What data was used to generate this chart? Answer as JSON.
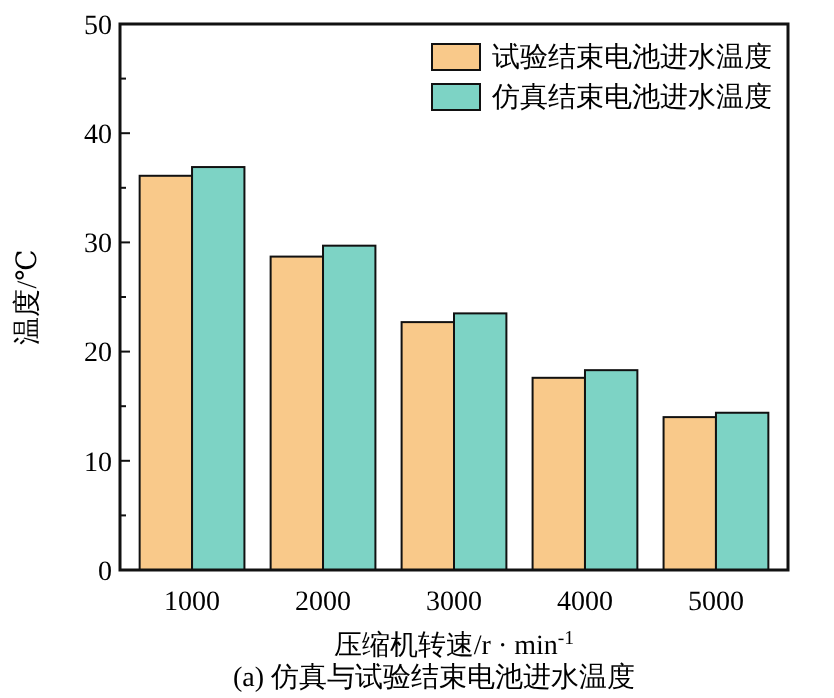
{
  "chart_data": {
    "type": "bar",
    "xlabel": "压缩机转速/r · min$^{-1}$",
    "ylabel": "温度/℃",
    "categories": [
      "1000",
      "2000",
      "3000",
      "4000",
      "5000"
    ],
    "series": [
      {
        "name": "试验结束电池进水温度",
        "color": "#f9c98a",
        "values": [
          36.1,
          28.7,
          22.7,
          17.6,
          14.0
        ]
      },
      {
        "name": "仿真结束电池进水温度",
        "color": "#7dd3c5",
        "values": [
          36.9,
          29.7,
          23.5,
          18.3,
          14.4
        ]
      }
    ],
    "ylim": [
      0,
      50
    ],
    "yticks": [
      0,
      10,
      20,
      30,
      40,
      50
    ],
    "grid": false,
    "legend": "top right",
    "annotations": [
      "(a) 仿真与试验结束电池进水温度"
    ]
  }
}
